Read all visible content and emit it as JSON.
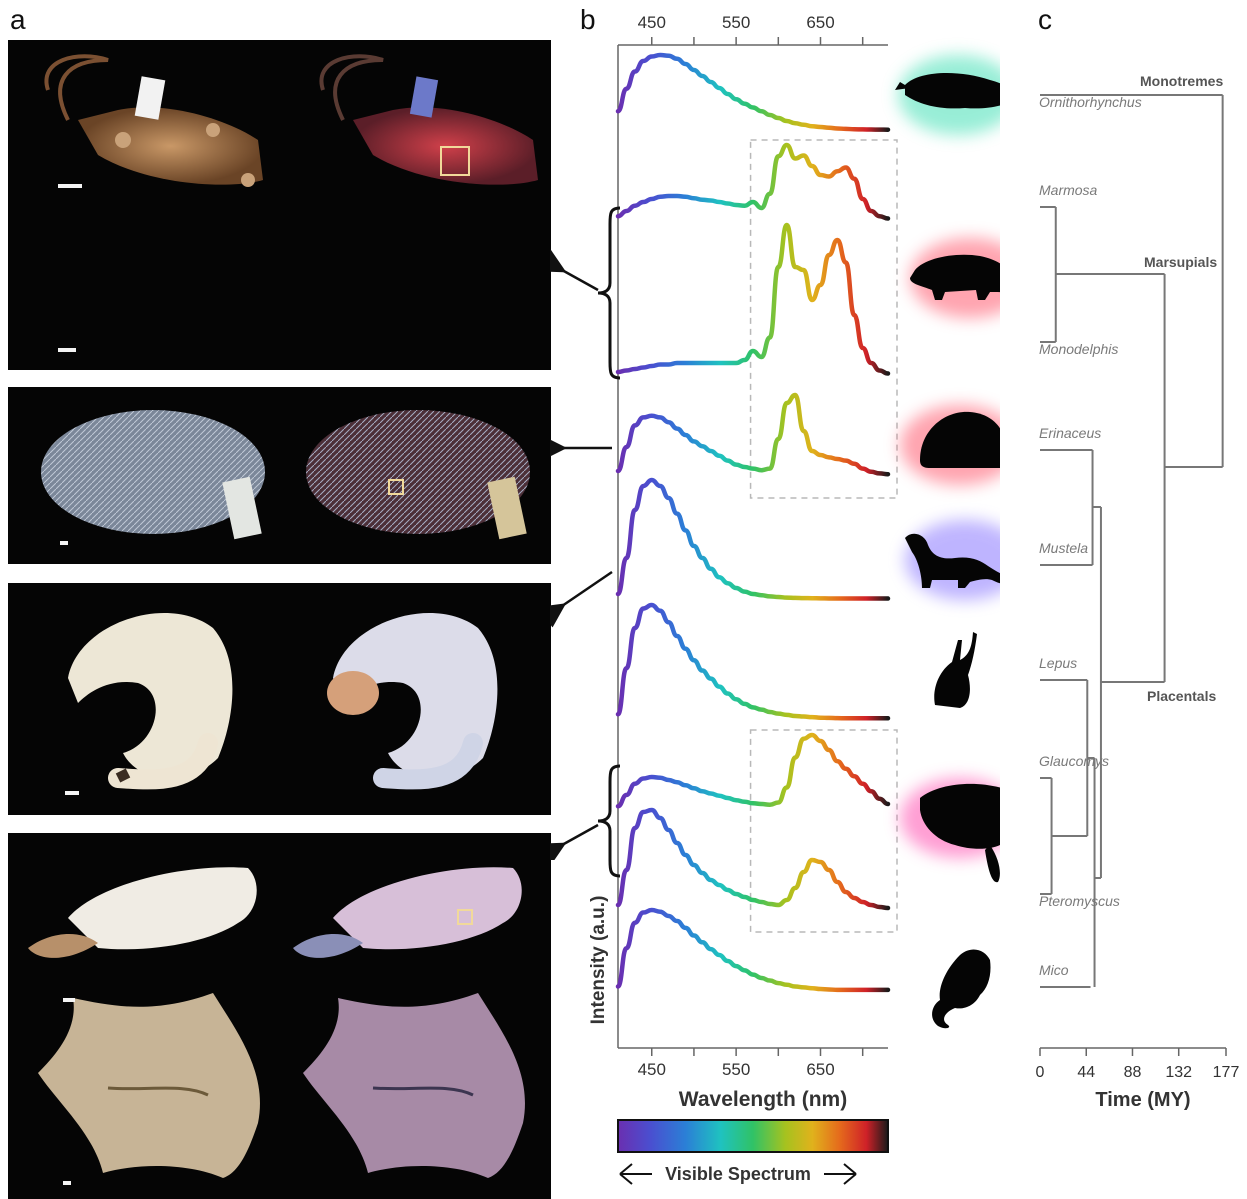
{
  "panels": {
    "a": "a",
    "b": "b",
    "c": "c"
  },
  "colors": {
    "photo_bg": "#050505",
    "roi": "#f1d99a",
    "scale_bar": "#f4f4f4",
    "dashed_box": "#b8b8b8",
    "tree_line": "#777777",
    "glow_teal": "#45e0b6",
    "glow_red": "#ff5a6e",
    "glow_purple": "#8a78ff",
    "glow_magenta": "#ff4fb0"
  },
  "photos": [
    {
      "specimen": "opossum-1",
      "views": [
        "visible-light",
        "uv-fluorescence"
      ],
      "roi": true
    },
    {
      "specimen": "opossum-2",
      "views": [
        "visible-light",
        "uv-fluorescence"
      ],
      "roi": false
    },
    {
      "specimen": "hedgehog",
      "views": [
        "visible-light",
        "uv-fluorescence"
      ],
      "roi": true
    },
    {
      "specimen": "ermine",
      "views": [
        "visible-light",
        "uv-fluorescence"
      ],
      "roi": false
    },
    {
      "specimen": "flying-squirrel-1",
      "views": [
        "visible-light",
        "uv-fluorescence"
      ],
      "roi": true
    },
    {
      "specimen": "flying-squirrel-2",
      "views": [
        "visible-light",
        "uv-fluorescence"
      ],
      "roi": false
    }
  ],
  "chart_data": [
    {
      "type": "line",
      "panel": "b",
      "xlabel": "Wavelength (nm)",
      "ylabel": "Intensity (a.u.)",
      "xlim": [
        410,
        730
      ],
      "xticks": [
        450,
        550,
        650
      ],
      "xticks_extra": [
        500,
        600,
        700
      ],
      "colorbar_label": "Visible Spectrum",
      "colorbar_range_nm": [
        410,
        730
      ],
      "x": [
        410,
        420,
        430,
        440,
        450,
        460,
        470,
        480,
        490,
        500,
        510,
        520,
        530,
        540,
        550,
        560,
        570,
        580,
        590,
        600,
        610,
        620,
        630,
        640,
        650,
        660,
        670,
        680,
        690,
        700,
        710,
        720,
        730
      ],
      "series": [
        {
          "taxon": "Ornithorhynchus",
          "glow": "teal",
          "values": [
            0.25,
            0.55,
            0.78,
            0.92,
            0.98,
            1.0,
            0.99,
            0.95,
            0.88,
            0.8,
            0.72,
            0.64,
            0.56,
            0.48,
            0.41,
            0.35,
            0.3,
            0.25,
            0.2,
            0.16,
            0.12,
            0.09,
            0.07,
            0.05,
            0.04,
            0.03,
            0.02,
            0.015,
            0.01,
            0.008,
            0.006,
            0.005,
            0.004
          ]
        },
        {
          "taxon": "Marmosa",
          "glow": "none",
          "values": [
            0.05,
            0.12,
            0.19,
            0.24,
            0.28,
            0.31,
            0.32,
            0.32,
            0.31,
            0.29,
            0.27,
            0.26,
            0.24,
            0.22,
            0.2,
            0.19,
            0.24,
            0.16,
            0.35,
            0.85,
            1.0,
            0.82,
            0.86,
            0.72,
            0.6,
            0.58,
            0.65,
            0.7,
            0.55,
            0.28,
            0.12,
            0.05,
            0.02
          ]
        },
        {
          "taxon": "Monodelphis",
          "glow": "red",
          "values": [
            0.02,
            0.03,
            0.04,
            0.05,
            0.06,
            0.07,
            0.07,
            0.08,
            0.08,
            0.08,
            0.08,
            0.08,
            0.08,
            0.08,
            0.08,
            0.1,
            0.16,
            0.12,
            0.25,
            0.72,
            1.0,
            0.72,
            0.7,
            0.5,
            0.6,
            0.8,
            0.9,
            0.75,
            0.4,
            0.18,
            0.08,
            0.03,
            0.01
          ]
        },
        {
          "taxon": "Erinaceus",
          "glow": "red",
          "values": [
            0.05,
            0.35,
            0.62,
            0.72,
            0.74,
            0.72,
            0.66,
            0.58,
            0.5,
            0.42,
            0.36,
            0.3,
            0.24,
            0.18,
            0.13,
            0.1,
            0.08,
            0.06,
            0.08,
            0.45,
            0.9,
            1.0,
            0.55,
            0.3,
            0.25,
            0.22,
            0.2,
            0.18,
            0.14,
            0.08,
            0.04,
            0.02,
            0.01
          ]
        },
        {
          "taxon": "Mustela",
          "glow": "purple",
          "values": [
            0.05,
            0.35,
            0.75,
            0.95,
            1.0,
            0.95,
            0.85,
            0.72,
            0.58,
            0.45,
            0.35,
            0.26,
            0.19,
            0.14,
            0.1,
            0.07,
            0.05,
            0.04,
            0.03,
            0.025,
            0.02,
            0.018,
            0.016,
            0.015,
            0.014,
            0.013,
            0.012,
            0.012,
            0.012,
            0.012,
            0.012,
            0.012,
            0.012
          ]
        },
        {
          "taxon": "Lepus",
          "glow": "none",
          "values": [
            0.05,
            0.45,
            0.8,
            0.97,
            1.0,
            0.95,
            0.85,
            0.73,
            0.62,
            0.52,
            0.43,
            0.36,
            0.29,
            0.23,
            0.18,
            0.14,
            0.11,
            0.09,
            0.07,
            0.055,
            0.045,
            0.035,
            0.03,
            0.025,
            0.02,
            0.018,
            0.016,
            0.015,
            0.015,
            0.015,
            0.015,
            0.015,
            0.015
          ]
        },
        {
          "taxon": "Glaucomys",
          "glow": "magenta",
          "values": [
            0.05,
            0.2,
            0.35,
            0.42,
            0.44,
            0.43,
            0.4,
            0.37,
            0.33,
            0.29,
            0.25,
            0.22,
            0.19,
            0.16,
            0.13,
            0.11,
            0.09,
            0.08,
            0.07,
            0.1,
            0.3,
            0.7,
            0.95,
            1.0,
            0.92,
            0.8,
            0.65,
            0.55,
            0.45,
            0.35,
            0.25,
            0.15,
            0.08
          ]
        },
        {
          "taxon": "Pteromyscus",
          "glow": "none",
          "values": [
            0.05,
            0.4,
            0.82,
            0.98,
            1.0,
            0.92,
            0.8,
            0.67,
            0.55,
            0.45,
            0.37,
            0.3,
            0.25,
            0.2,
            0.16,
            0.13,
            0.1,
            0.08,
            0.06,
            0.05,
            0.1,
            0.22,
            0.38,
            0.5,
            0.48,
            0.4,
            0.28,
            0.18,
            0.12,
            0.08,
            0.05,
            0.03,
            0.02
          ]
        },
        {
          "taxon": "Mico",
          "glow": "none",
          "values": [
            0.1,
            0.55,
            0.85,
            0.97,
            1.0,
            0.98,
            0.93,
            0.87,
            0.79,
            0.7,
            0.62,
            0.54,
            0.47,
            0.4,
            0.34,
            0.29,
            0.24,
            0.2,
            0.17,
            0.14,
            0.12,
            0.1,
            0.09,
            0.08,
            0.07,
            0.065,
            0.06,
            0.06,
            0.06,
            0.06,
            0.06,
            0.06,
            0.06
          ]
        }
      ],
      "highlight_boxes_nm": [
        [
          560,
          750
        ],
        [
          560,
          750
        ]
      ]
    },
    {
      "type": "dendrogram",
      "panel": "c",
      "xlabel": "Time (MY)",
      "xticks": [
        0,
        44,
        88,
        132,
        177
      ],
      "taxa": [
        "Ornithorhynchus",
        "Marmosa",
        "Monodelphis",
        "Erinaceus",
        "Mustela",
        "Lepus",
        "Glaucomys",
        "Pteromyscus",
        "Mico"
      ],
      "clades": [
        {
          "name": "Monotremes",
          "members": [
            "Ornithorhynchus"
          ]
        },
        {
          "name": "Marsupials",
          "members": [
            "Marmosa",
            "Monodelphis"
          ],
          "divergence_my": 80
        },
        {
          "name": "Placentals",
          "members": [
            "Erinaceus",
            "Mustela",
            "Lepus",
            "Glaucomys",
            "Pteromyscus",
            "Mico"
          ],
          "divergence_my": 90
        }
      ],
      "root_my": 177,
      "therian_split_my": 160
    }
  ]
}
